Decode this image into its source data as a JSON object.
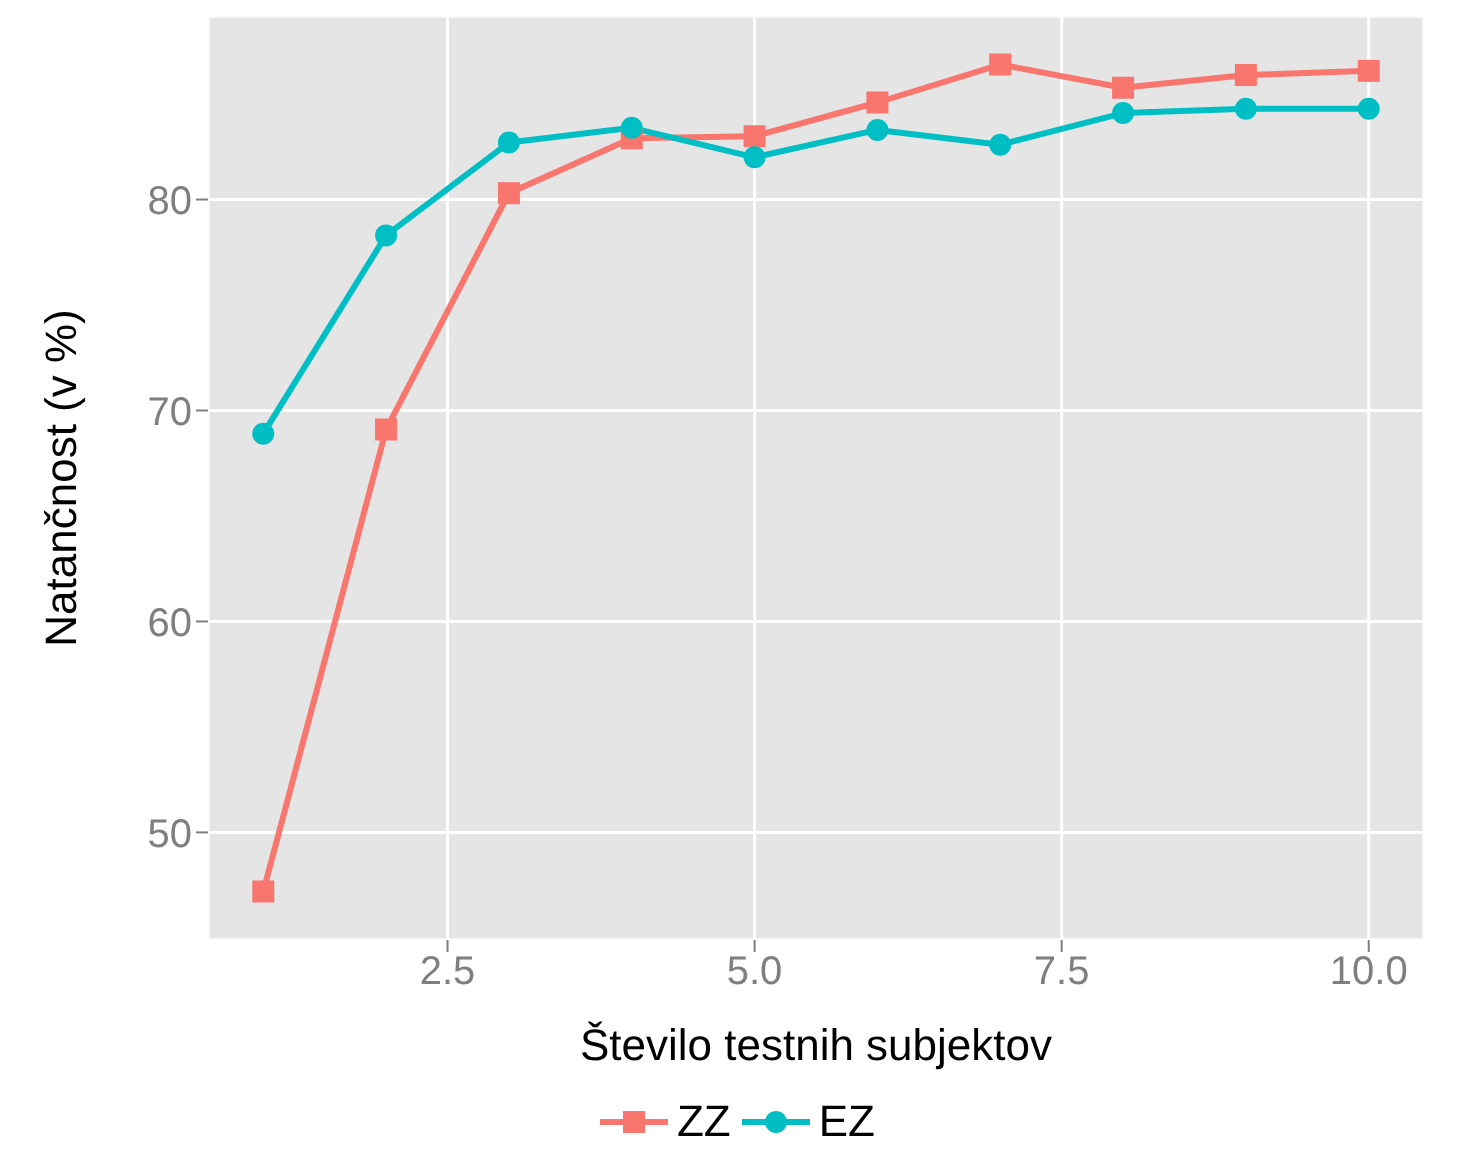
{
  "chart_data": {
    "type": "line",
    "xlabel": "Število testnih subjektov",
    "ylabel": "Natančnost (v %)",
    "x": [
      1,
      2,
      3,
      4,
      5,
      6,
      7,
      8,
      9,
      10
    ],
    "series": [
      {
        "name": "ZZ",
        "color": "#f8766d",
        "marker": "square",
        "values": [
          47.2,
          69.1,
          80.3,
          82.9,
          83.0,
          84.6,
          86.4,
          85.3,
          85.9,
          86.1
        ]
      },
      {
        "name": "EZ",
        "color": "#00bfc4",
        "marker": "circle",
        "values": [
          68.9,
          78.3,
          82.7,
          83.4,
          82.0,
          83.3,
          82.6,
          84.1,
          84.3,
          84.3
        ]
      }
    ],
    "xlim": [
      0.55,
      10.45
    ],
    "xticks": [
      {
        "value": 2.5,
        "label": "2.5"
      },
      {
        "value": 5,
        "label": "5.0"
      },
      {
        "value": 7.5,
        "label": "7.5"
      },
      {
        "value": 10,
        "label": "10.0"
      }
    ],
    "ylim": [
      44.9,
      88.7
    ],
    "yticks": [
      50,
      60,
      70,
      80
    ],
    "grid": true,
    "legend": "bottom",
    "line_style": "solid"
  }
}
